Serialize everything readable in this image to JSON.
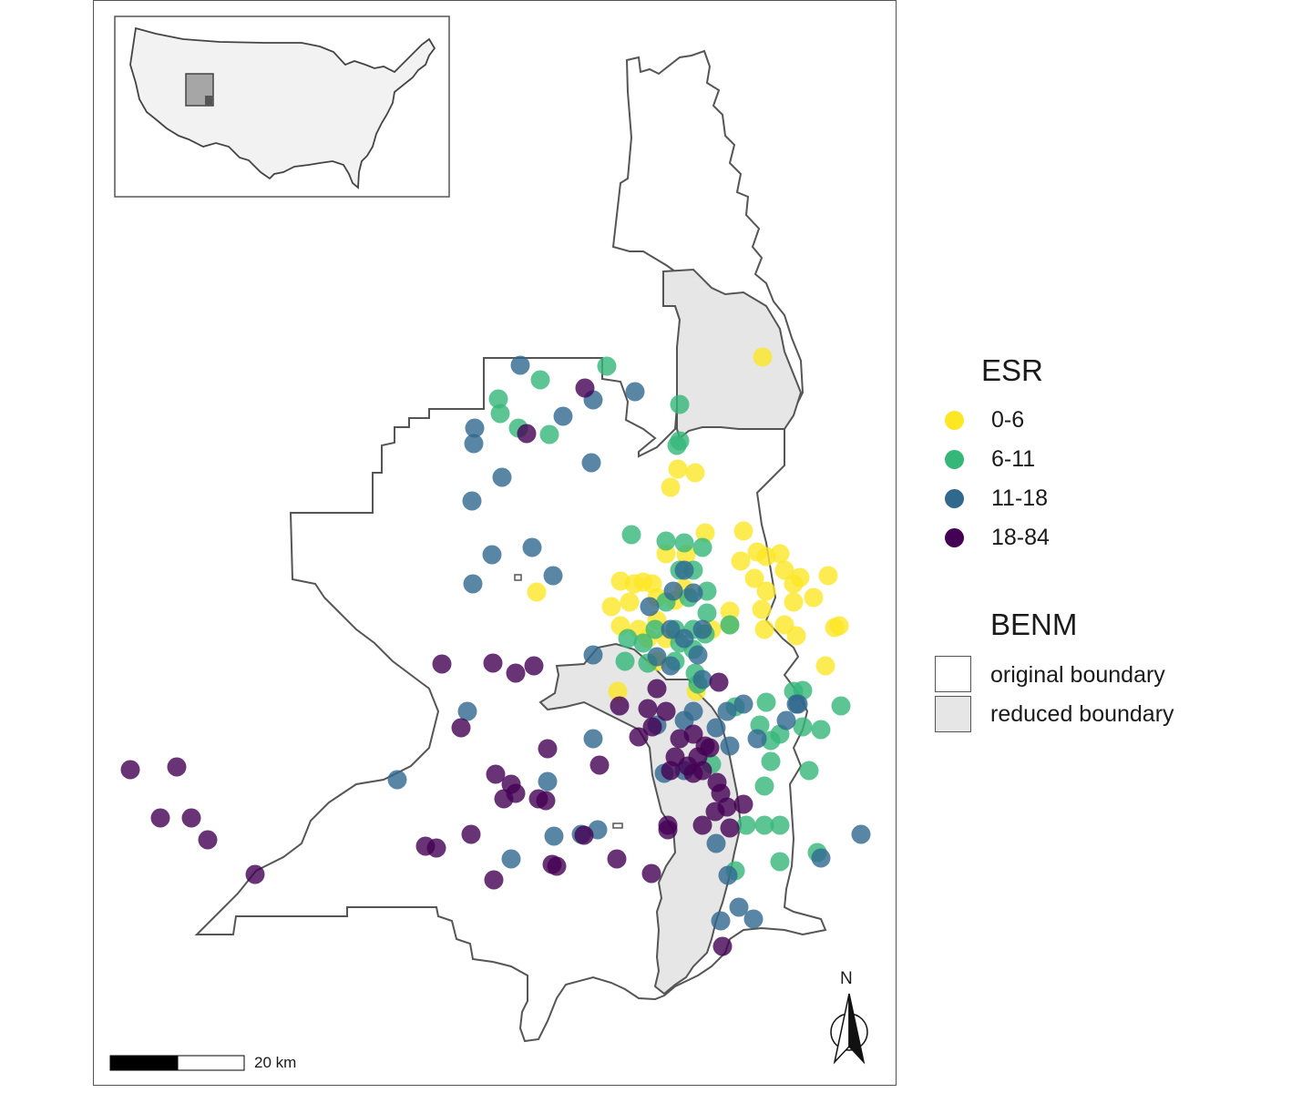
{
  "colors": {
    "esr_0_6": "#FDE725",
    "esr_6_11": "#35B779",
    "esr_11_18": "#31688E",
    "esr_18_84": "#440154",
    "original_boundary_fill": "#ffffff",
    "reduced_boundary_fill": "#e6e6e6",
    "boundary_stroke": "#555555",
    "inset_us_fill": "#f2f2f2",
    "inset_utah_fill": "#a6a6a6"
  },
  "legend": {
    "esr_title": "ESR",
    "esr_items": [
      {
        "label": "0-6",
        "color": "#FDE725"
      },
      {
        "label": "6-11",
        "color": "#35B779"
      },
      {
        "label": "11-18",
        "color": "#31688E"
      },
      {
        "label": "18-84",
        "color": "#440154"
      }
    ],
    "benm_title": "BENM",
    "benm_items": [
      {
        "label": "original boundary",
        "fill": "#ffffff"
      },
      {
        "label": "reduced boundary",
        "fill": "#e6e6e6"
      }
    ]
  },
  "scale_bar": {
    "label": "20 km"
  },
  "north_arrow": {
    "label": "N"
  },
  "inset": {
    "icon": "usa-locator-map",
    "highlight": "utah"
  }
}
